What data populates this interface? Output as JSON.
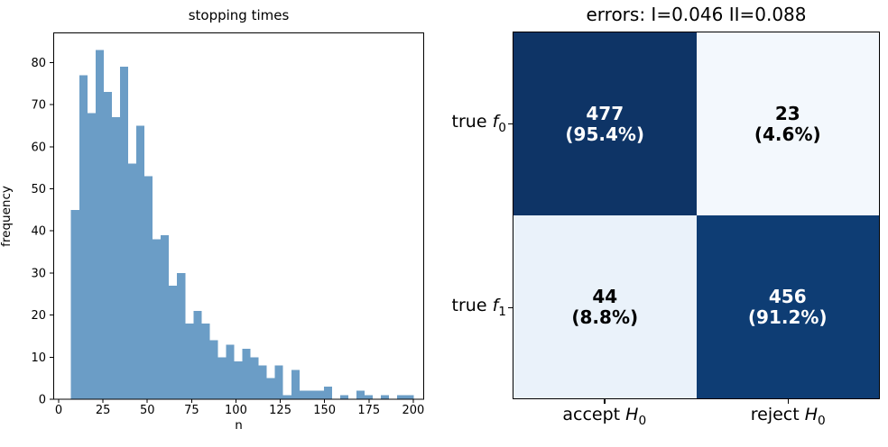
{
  "figure": {
    "background": "#ffffff"
  },
  "chart_data": [
    {
      "type": "bar",
      "subplot": "left",
      "title": "stopping times",
      "xlabel": "n",
      "ylabel": "frequency",
      "bar_color": "#6b9dc6",
      "axis_color": "#000000",
      "grid": false,
      "bin_start": 7,
      "bin_width": 4.6,
      "counts": [
        45,
        77,
        68,
        83,
        73,
        67,
        79,
        56,
        65,
        53,
        38,
        39,
        27,
        30,
        18,
        21,
        18,
        14,
        10,
        13,
        9,
        12,
        10,
        8,
        5,
        8,
        1,
        7,
        2,
        2,
        2,
        3,
        0,
        1,
        0,
        2,
        1,
        0,
        1,
        0,
        1,
        1
      ],
      "x_ticks": [
        0,
        25,
        50,
        75,
        100,
        125,
        150,
        175,
        200
      ],
      "y_ticks": [
        0,
        10,
        20,
        30,
        40,
        50,
        60,
        70,
        80
      ],
      "xlim": [
        -3.05,
        206.15
      ],
      "ylim": [
        0,
        87.15
      ]
    },
    {
      "type": "heatmap",
      "subplot": "right",
      "title": "errors: I=0.046 II=0.088",
      "colormap": "Blues",
      "row_labels": [
        {
          "prefix": "true ",
          "sym": "f",
          "sub": "0"
        },
        {
          "prefix": "true ",
          "sym": "f",
          "sub": "1"
        }
      ],
      "col_labels": [
        {
          "prefix": "accept ",
          "sym": "H",
          "sub": "0"
        },
        {
          "prefix": "reject ",
          "sym": "H",
          "sub": "0"
        }
      ],
      "cells": [
        [
          {
            "value": "477",
            "pct": "(95.4%)",
            "bg": "#0e3466",
            "fg": "#ffffff"
          },
          {
            "value": "23",
            "pct": "(4.6%)",
            "bg": "#f3f8fd",
            "fg": "#000000"
          }
        ],
        [
          {
            "value": "44",
            "pct": "(8.8%)",
            "bg": "#eaf2fa",
            "fg": "#000000"
          },
          {
            "value": "456",
            "pct": "(91.2%)",
            "bg": "#0e3d74",
            "fg": "#ffffff"
          }
        ]
      ]
    }
  ]
}
